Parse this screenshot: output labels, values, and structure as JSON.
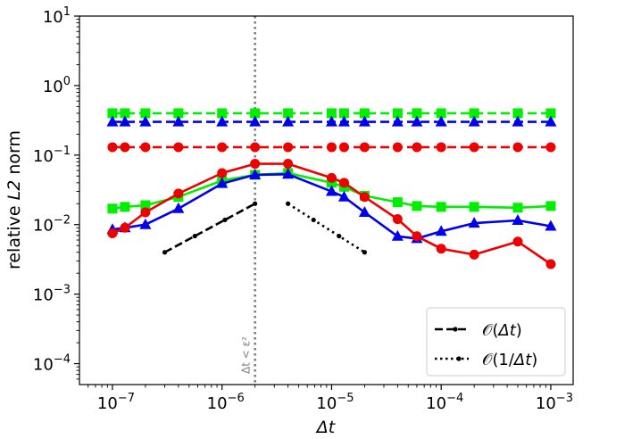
{
  "chart_data": {
    "type": "line",
    "xscale": "log",
    "yscale": "log",
    "xlim": [
      5e-08,
      0.0016
    ],
    "ylim": [
      5e-05,
      10
    ],
    "xlabel": "Δt",
    "ylabel_pre": "relative ",
    "ylabel_var": "L2",
    "ylabel_post": " norm",
    "x_ticks": [
      {
        "value": 1e-07,
        "base": "10",
        "exp": "−7"
      },
      {
        "value": 1e-06,
        "base": "10",
        "exp": "−6"
      },
      {
        "value": 1e-05,
        "base": "10",
        "exp": "−5"
      },
      {
        "value": 0.0001,
        "base": "10",
        "exp": "−4"
      },
      {
        "value": 0.001,
        "base": "10",
        "exp": "−3"
      }
    ],
    "y_ticks": [
      {
        "value": 0.0001,
        "base": "10",
        "exp": "−4"
      },
      {
        "value": 0.001,
        "base": "10",
        "exp": "−3"
      },
      {
        "value": 0.01,
        "base": "10",
        "exp": "−2"
      },
      {
        "value": 0.1,
        "base": "10",
        "exp": "−1"
      },
      {
        "value": 1,
        "base": "10",
        "exp": "0"
      },
      {
        "value": 10,
        "base": "10",
        "exp": "1"
      }
    ],
    "vline": {
      "x": 2e-06,
      "label": "Δt < ε²",
      "color": "#808080"
    },
    "series": [
      {
        "color": "#00ee00",
        "marker": "square",
        "dash": "dashed",
        "x": [
          1e-07,
          1.3e-07,
          2e-07,
          4e-07,
          1e-06,
          2e-06,
          4e-06,
          1e-05,
          1.3e-05,
          2e-05,
          4e-05,
          6e-05,
          0.0001,
          0.0002,
          0.0005,
          0.001
        ],
        "y": [
          0.4,
          0.4,
          0.4,
          0.4,
          0.4,
          0.4,
          0.4,
          0.4,
          0.4,
          0.4,
          0.4,
          0.4,
          0.4,
          0.4,
          0.4,
          0.4
        ]
      },
      {
        "color": "#0000ee",
        "marker": "triangle",
        "dash": "dashed",
        "x": [
          1e-07,
          1.3e-07,
          2e-07,
          4e-07,
          1e-06,
          2e-06,
          4e-06,
          1e-05,
          1.3e-05,
          2e-05,
          4e-05,
          6e-05,
          0.0001,
          0.0002,
          0.0005,
          0.001
        ],
        "y": [
          0.3,
          0.3,
          0.3,
          0.3,
          0.3,
          0.3,
          0.3,
          0.3,
          0.3,
          0.3,
          0.3,
          0.3,
          0.3,
          0.3,
          0.3,
          0.3
        ]
      },
      {
        "color": "#ee0000",
        "marker": "circle",
        "dash": "dashed",
        "x": [
          1e-07,
          1.3e-07,
          2e-07,
          4e-07,
          1e-06,
          2e-06,
          4e-06,
          1e-05,
          1.3e-05,
          2e-05,
          4e-05,
          6e-05,
          0.0001,
          0.0002,
          0.0005,
          0.001
        ],
        "y": [
          0.13,
          0.13,
          0.13,
          0.13,
          0.13,
          0.13,
          0.13,
          0.13,
          0.13,
          0.13,
          0.13,
          0.13,
          0.13,
          0.13,
          0.13,
          0.13
        ]
      },
      {
        "color": "#00ee00",
        "marker": "square",
        "dash": "solid",
        "x": [
          1e-07,
          1.3e-07,
          2e-07,
          4e-07,
          1e-06,
          2e-06,
          4e-06,
          1e-05,
          1.3e-05,
          2e-05,
          4e-05,
          6e-05,
          0.0001,
          0.0002,
          0.0005,
          0.001
        ],
        "y": [
          0.017,
          0.018,
          0.019,
          0.025,
          0.043,
          0.052,
          0.055,
          0.04,
          0.035,
          0.026,
          0.021,
          0.0185,
          0.018,
          0.018,
          0.0175,
          0.0185
        ]
      },
      {
        "color": "#0000ee",
        "marker": "triangle",
        "dash": "solid",
        "x": [
          1e-07,
          1.3e-07,
          2e-07,
          4e-07,
          1e-06,
          2e-06,
          4e-06,
          1e-05,
          1.3e-05,
          2e-05,
          4e-05,
          6e-05,
          0.0001,
          0.0002,
          0.0005,
          0.001
        ],
        "y": [
          0.0085,
          0.009,
          0.01,
          0.017,
          0.039,
          0.052,
          0.053,
          0.03,
          0.025,
          0.015,
          0.0068,
          0.0063,
          0.008,
          0.0105,
          0.0115,
          0.0095
        ]
      },
      {
        "color": "#ee0000",
        "marker": "circle",
        "dash": "solid",
        "x": [
          1e-07,
          1.3e-07,
          2e-07,
          4e-07,
          1e-06,
          2e-06,
          4e-06,
          1e-05,
          1.3e-05,
          2e-05,
          4e-05,
          6e-05,
          0.0001,
          0.0002,
          0.0005,
          0.001
        ],
        "y": [
          0.0075,
          0.009,
          0.015,
          0.028,
          0.055,
          0.075,
          0.075,
          0.047,
          0.04,
          0.025,
          0.012,
          0.0068,
          0.0045,
          0.0037,
          0.0057,
          0.0027
        ]
      }
    ],
    "reference_lines": [
      {
        "dash": "dashed",
        "x": [
          3e-07,
          2e-06
        ],
        "y": [
          0.004,
          0.02
        ]
      },
      {
        "dash": "dotted",
        "x": [
          4e-06,
          2e-05
        ],
        "y": [
          0.02,
          0.004
        ]
      }
    ],
    "legend": {
      "position": "lower-right",
      "entries": [
        {
          "dash": "dashed",
          "label_pre": "𝒪(",
          "label_var": "Δt",
          "label_post": ")"
        },
        {
          "dash": "dotted",
          "label_pre": "𝒪(1/",
          "label_var": "Δt",
          "label_post": ")"
        }
      ]
    },
    "grid": false
  }
}
